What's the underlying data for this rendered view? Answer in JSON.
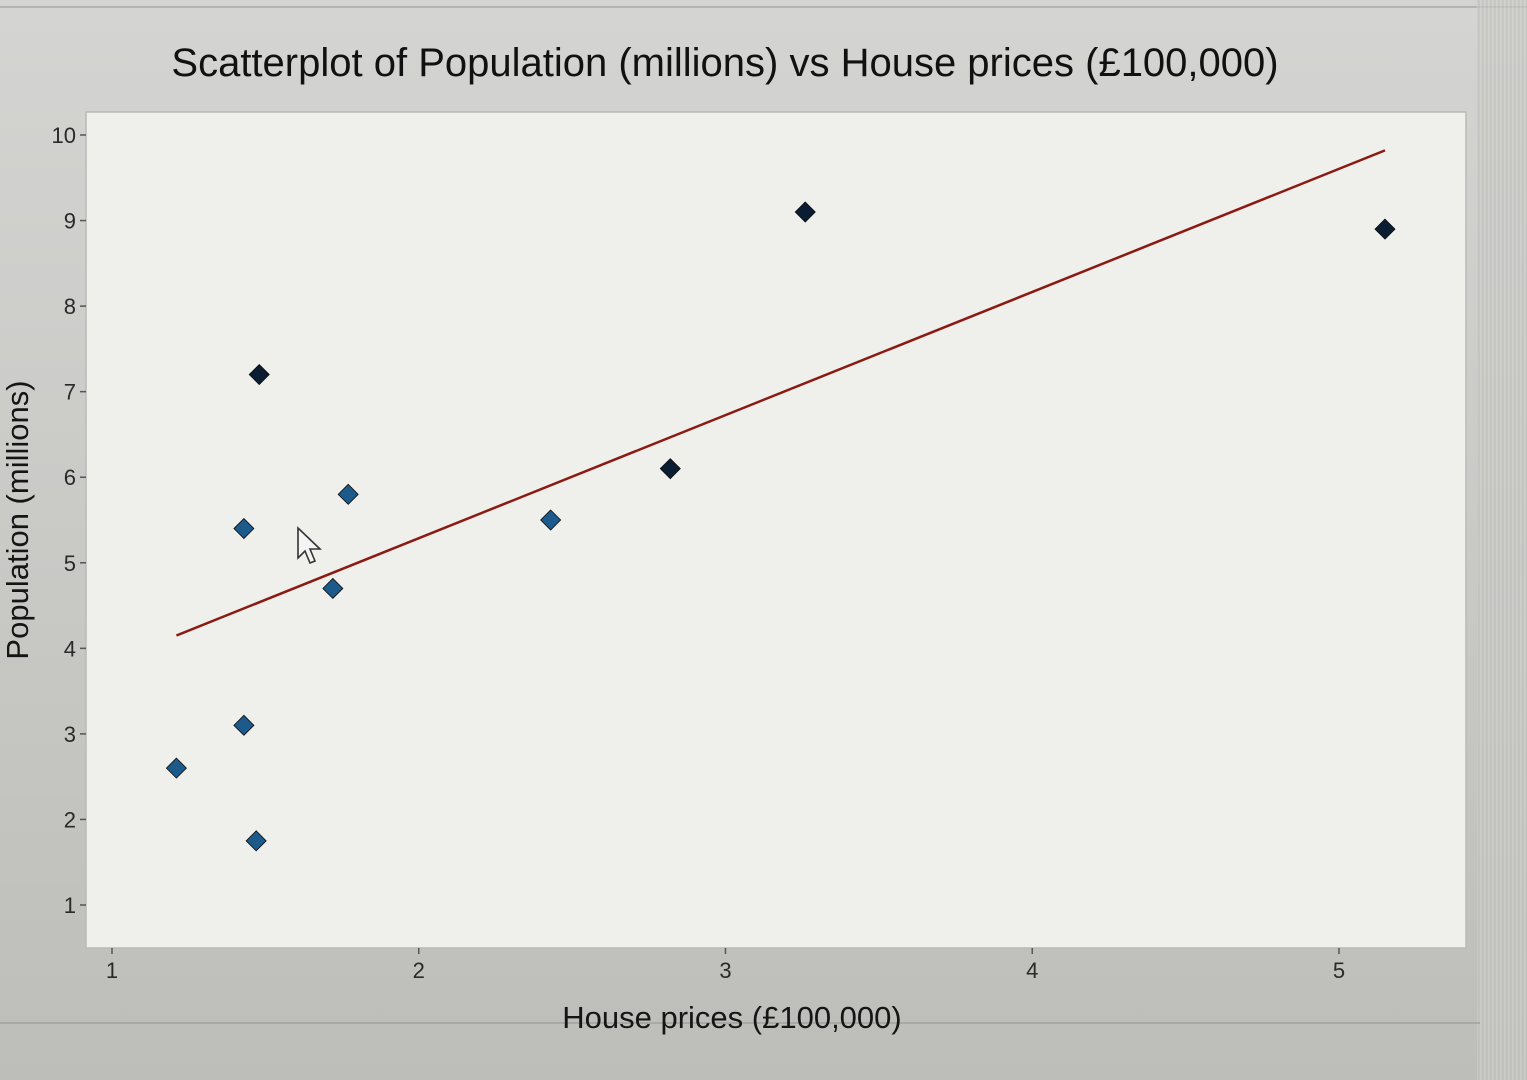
{
  "chart_data": {
    "type": "scatter",
    "title": "Scatterplot of Population (millions) vs House prices (£100,000)",
    "xlabel": "House prices (£100,000)",
    "ylabel": "Population (millions)",
    "xlim": [
      1,
      5.15
    ],
    "ylim": [
      1,
      10
    ],
    "xticks": [
      1,
      2,
      3,
      4,
      5
    ],
    "yticks": [
      1,
      2,
      3,
      4,
      5,
      6,
      7,
      8,
      9,
      10
    ],
    "x": [
      1.21,
      1.43,
      1.43,
      1.47,
      1.48,
      1.72,
      1.77,
      2.43,
      2.82,
      3.26,
      5.15
    ],
    "y": [
      2.6,
      3.1,
      5.4,
      1.75,
      7.2,
      4.7,
      5.8,
      5.5,
      6.1,
      9.1,
      8.9
    ],
    "trendline": {
      "x": [
        1.21,
        5.15
      ],
      "y": [
        4.15,
        9.82
      ]
    },
    "grid": false,
    "colors": {
      "marker_dark": "#0b1d33",
      "marker_blue": "#1c5a8c",
      "trendline": "#8a1a12",
      "plot_background": "#efefec"
    }
  }
}
